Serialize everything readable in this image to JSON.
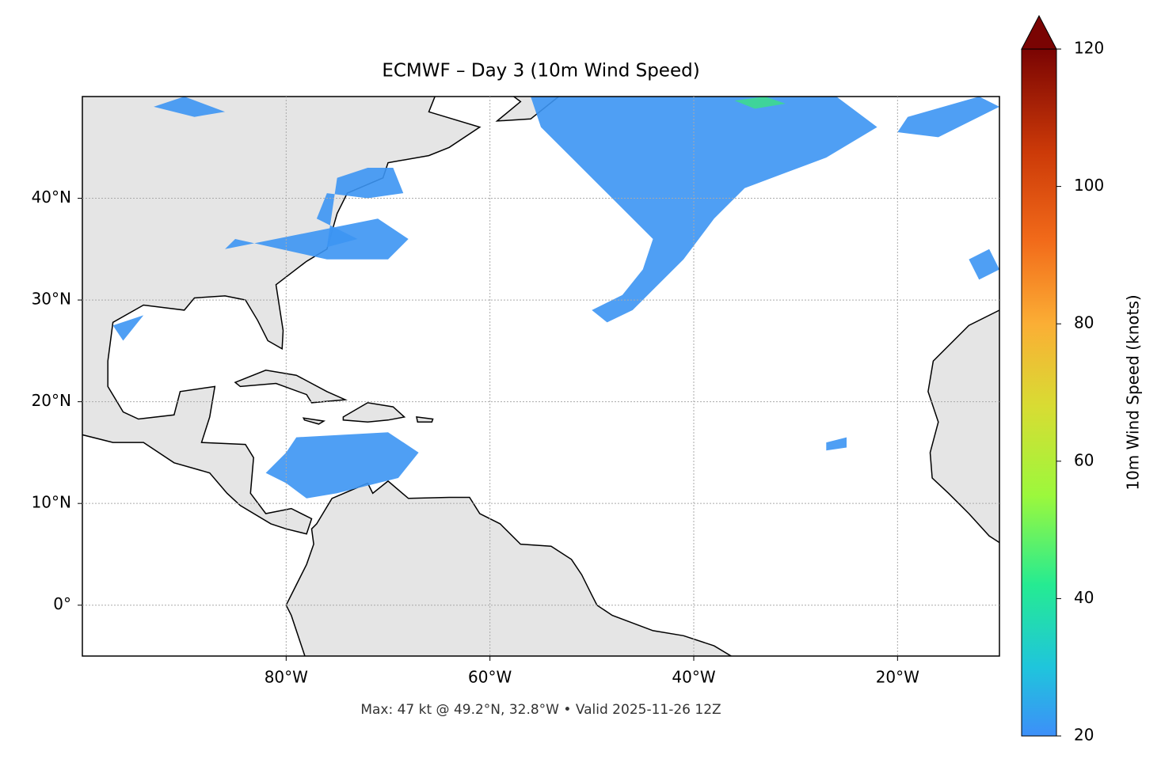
{
  "chart_data": {
    "type": "map",
    "title": "ECMWF – Day 3 (10m Wind Speed)",
    "annotation": "Max: 47 kt @ 49.2°N, 32.8°W • Valid 2025-11-26 12Z",
    "xlim": [
      -100,
      -10
    ],
    "ylim": [
      -5,
      50
    ],
    "xticks": [
      {
        "value": -80,
        "label": "80°W"
      },
      {
        "value": -60,
        "label": "60°W"
      },
      {
        "value": -40,
        "label": "40°W"
      },
      {
        "value": -20,
        "label": "20°W"
      }
    ],
    "yticks": [
      {
        "value": 0,
        "label": "0°"
      },
      {
        "value": 10,
        "label": "10°N"
      },
      {
        "value": 20,
        "label": "20°N"
      },
      {
        "value": 30,
        "label": "30°N"
      },
      {
        "value": 40,
        "label": "40°N"
      }
    ],
    "grid": true,
    "colorbar": {
      "label": "10m Wind Speed (knots)",
      "lim": [
        20,
        120
      ],
      "ticks": [
        20,
        40,
        60,
        80,
        100,
        120
      ]
    }
  }
}
